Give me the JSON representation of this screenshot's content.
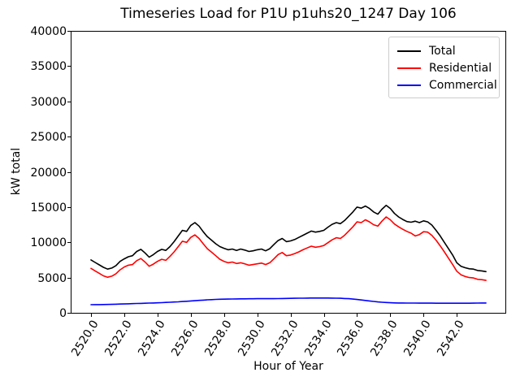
{
  "chart_data": {
    "type": "line",
    "title": "Timeseries Load for P1U p1uhs20_1247  Day 106",
    "xlabel": "Hour of Year",
    "ylabel": "kW total",
    "xlim": [
      2518.78,
      2544.92
    ],
    "ylim": [
      0,
      40000
    ],
    "grid": false,
    "legend_position": "upper right",
    "xticks": {
      "values": [
        2520,
        2522,
        2524,
        2526,
        2528,
        2530,
        2532,
        2534,
        2536,
        2538,
        2540,
        2542
      ],
      "labels": [
        "2520.0",
        "2522.0",
        "2524.0",
        "2526.0",
        "2528.0",
        "2530.0",
        "2532.0",
        "2534.0",
        "2536.0",
        "2538.0",
        "2540.0",
        "2542.0"
      ]
    },
    "yticks": {
      "values": [
        0,
        5000,
        10000,
        15000,
        20000,
        25000,
        30000,
        35000,
        40000
      ],
      "labels": [
        "0",
        "5000",
        "10000",
        "15000",
        "20000",
        "25000",
        "30000",
        "35000",
        "40000"
      ]
    },
    "x": [
      2520.0,
      2520.25,
      2520.5,
      2520.75,
      2521.0,
      2521.25,
      2521.5,
      2521.75,
      2522.0,
      2522.25,
      2522.5,
      2522.75,
      2523.0,
      2523.25,
      2523.5,
      2523.75,
      2524.0,
      2524.25,
      2524.5,
      2524.75,
      2525.0,
      2525.25,
      2525.5,
      2525.75,
      2526.0,
      2526.25,
      2526.5,
      2526.75,
      2527.0,
      2527.25,
      2527.5,
      2527.75,
      2528.0,
      2528.25,
      2528.5,
      2528.75,
      2529.0,
      2529.25,
      2529.5,
      2529.75,
      2530.0,
      2530.25,
      2530.5,
      2530.75,
      2531.0,
      2531.25,
      2531.5,
      2531.75,
      2532.0,
      2532.25,
      2532.5,
      2532.75,
      2533.0,
      2533.25,
      2533.5,
      2533.75,
      2534.0,
      2534.25,
      2534.5,
      2534.75,
      2535.0,
      2535.25,
      2535.5,
      2535.75,
      2536.0,
      2536.25,
      2536.5,
      2536.75,
      2537.0,
      2537.25,
      2537.5,
      2537.75,
      2538.0,
      2538.25,
      2538.5,
      2538.75,
      2539.0,
      2539.25,
      2539.5,
      2539.75,
      2540.0,
      2540.25,
      2540.5,
      2540.75,
      2541.0,
      2541.25,
      2541.5,
      2541.75,
      2542.0,
      2542.25,
      2542.5,
      2542.75,
      2543.0,
      2543.25,
      2543.5,
      2543.75
    ],
    "series": [
      {
        "name": "Total",
        "color": "#000000",
        "values": [
          7500,
          7150,
          6800,
          6450,
          6200,
          6350,
          6700,
          7300,
          7650,
          7950,
          8100,
          8700,
          9000,
          8500,
          7900,
          8250,
          8700,
          9000,
          8850,
          9400,
          10100,
          10900,
          11700,
          11550,
          12400,
          12800,
          12300,
          11500,
          10800,
          10300,
          9800,
          9400,
          9150,
          8950,
          9050,
          8850,
          9050,
          8900,
          8700,
          8800,
          8950,
          9050,
          8800,
          9100,
          9700,
          10250,
          10550,
          10100,
          10200,
          10400,
          10700,
          11000,
          11300,
          11600,
          11450,
          11550,
          11700,
          12150,
          12550,
          12800,
          12650,
          13100,
          13700,
          14300,
          15000,
          14850,
          15150,
          14800,
          14300,
          14000,
          14700,
          15250,
          14800,
          14100,
          13600,
          13250,
          12950,
          12850,
          13000,
          12800,
          13050,
          12900,
          12450,
          11700,
          10900,
          10000,
          9100,
          8200,
          7100,
          6600,
          6400,
          6250,
          6200,
          6000,
          5950,
          5850
        ]
      },
      {
        "name": "Residential",
        "color": "#ff0000",
        "values": [
          6300,
          5950,
          5600,
          5250,
          5050,
          5200,
          5550,
          6100,
          6500,
          6750,
          6850,
          7400,
          7700,
          7200,
          6600,
          6900,
          7300,
          7600,
          7450,
          8000,
          8650,
          9400,
          10150,
          10000,
          10700,
          11050,
          10550,
          9800,
          9100,
          8600,
          8100,
          7600,
          7300,
          7100,
          7200,
          7000,
          7100,
          6950,
          6750,
          6850,
          6950,
          7050,
          6850,
          7100,
          7650,
          8250,
          8550,
          8100,
          8200,
          8400,
          8650,
          8950,
          9200,
          9450,
          9300,
          9400,
          9550,
          9950,
          10350,
          10650,
          10550,
          11000,
          11600,
          12200,
          12900,
          12800,
          13200,
          12900,
          12500,
          12300,
          13000,
          13600,
          13200,
          12600,
          12200,
          11850,
          11550,
          11300,
          10900,
          11100,
          11500,
          11450,
          11000,
          10300,
          9500,
          8650,
          7750,
          6850,
          5900,
          5400,
          5150,
          5000,
          4950,
          4750,
          4700,
          4600
        ]
      },
      {
        "name": "Commercial",
        "color": "#0000ff",
        "values": [
          1150,
          1160,
          1170,
          1180,
          1190,
          1200,
          1220,
          1240,
          1260,
          1280,
          1300,
          1320,
          1340,
          1360,
          1380,
          1400,
          1420,
          1440,
          1470,
          1500,
          1530,
          1560,
          1600,
          1640,
          1680,
          1720,
          1760,
          1800,
          1840,
          1870,
          1900,
          1920,
          1940,
          1950,
          1960,
          1970,
          1980,
          1985,
          1990,
          1995,
          2000,
          2000,
          2000,
          2000,
          2010,
          2020,
          2030,
          2040,
          2050,
          2060,
          2070,
          2080,
          2090,
          2100,
          2100,
          2100,
          2100,
          2100,
          2090,
          2080,
          2060,
          2030,
          2000,
          1950,
          1890,
          1820,
          1750,
          1680,
          1610,
          1550,
          1500,
          1460,
          1430,
          1410,
          1400,
          1390,
          1385,
          1380,
          1380,
          1375,
          1375,
          1370,
          1370,
          1365,
          1365,
          1360,
          1360,
          1360,
          1360,
          1360,
          1360,
          1365,
          1370,
          1380,
          1390,
          1400
        ]
      }
    ]
  }
}
